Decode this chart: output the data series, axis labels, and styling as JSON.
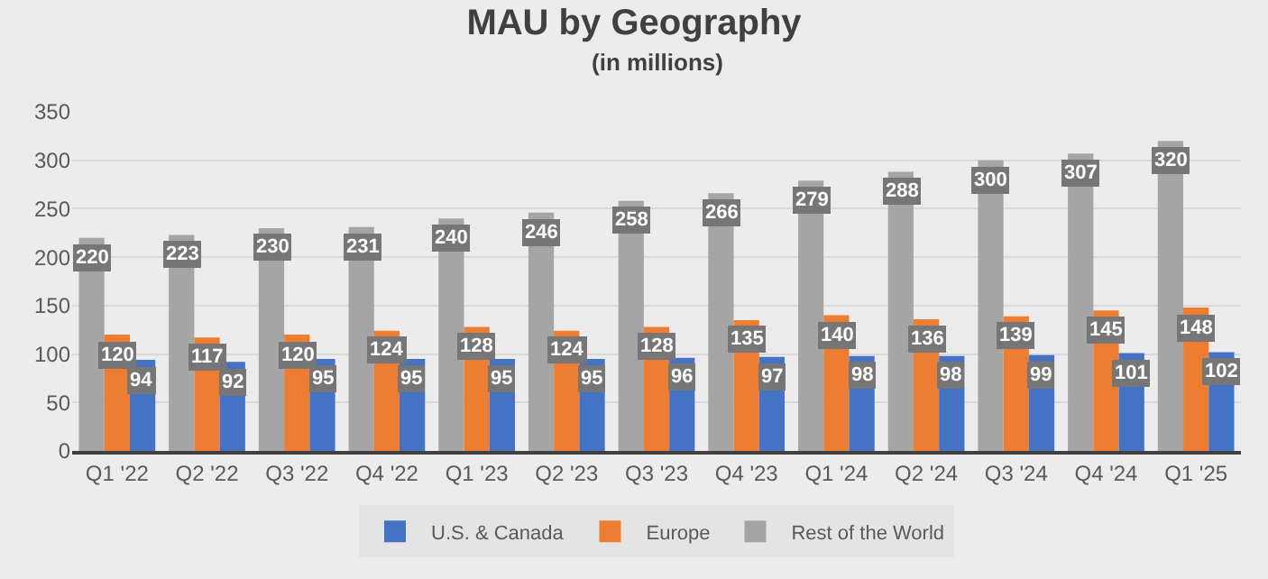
{
  "chart_data": {
    "type": "bar",
    "title": "MAU by Geography",
    "subtitle": "(in millions)",
    "categories": [
      "Q1 '22",
      "Q2 '22",
      "Q3 '22",
      "Q4 '22",
      "Q1 '23",
      "Q2 '23",
      "Q3 '23",
      "Q4 '23",
      "Q1 '24",
      "Q2 '24",
      "Q3 '24",
      "Q4 '24",
      "Q1 '25"
    ],
    "series": [
      {
        "name": "Rest of the World",
        "color": "#a5a5a5",
        "values": [
          220,
          223,
          230,
          231,
          240,
          246,
          258,
          266,
          279,
          288,
          300,
          307,
          320
        ]
      },
      {
        "name": "Europe",
        "color": "#ed7d31",
        "values": [
          120,
          117,
          120,
          124,
          128,
          124,
          128,
          135,
          140,
          136,
          139,
          145,
          148
        ]
      },
      {
        "name": "U.S. & Canada",
        "color": "#4472c4",
        "values": [
          94,
          92,
          95,
          95,
          95,
          95,
          96,
          97,
          98,
          98,
          99,
          101,
          102
        ]
      }
    ],
    "ylim": [
      0,
      350
    ],
    "yticks": [
      0,
      50,
      100,
      150,
      200,
      250,
      300,
      350
    ],
    "grid": "y",
    "legend": "bottom",
    "data_labels": true
  }
}
